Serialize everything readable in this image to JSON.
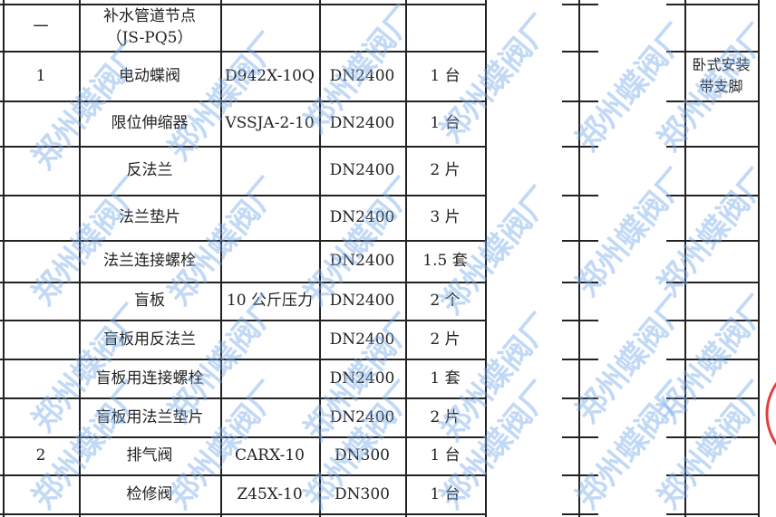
{
  "watermark": "郑州蝶阀厂",
  "seal_color": "#e04040",
  "rows": [
    {
      "no": "一",
      "name": "补水管道节点\n（JS-PQ5）",
      "model": "",
      "spec": "",
      "qty": "",
      "remark": ""
    },
    {
      "no": "1",
      "name": "电动蝶阀",
      "model": "D942X-10Q",
      "spec": "DN2400",
      "qty": "1 台",
      "remark": "卧式安装\n带支脚"
    },
    {
      "no": "",
      "name": "限位伸缩器",
      "model": "VSSJA-2-10",
      "spec": "DN2400",
      "qty": "1 台",
      "remark": ""
    },
    {
      "no": "",
      "name": "反法兰",
      "model": "",
      "spec": "DN2400",
      "qty": "2 片",
      "remark": ""
    },
    {
      "no": "",
      "name": "法兰垫片",
      "model": "",
      "spec": "DN2400",
      "qty": "3 片",
      "remark": ""
    },
    {
      "no": "",
      "name": "法兰连接螺栓",
      "model": "",
      "spec": "DN2400",
      "qty": "1.5 套",
      "remark": ""
    },
    {
      "no": "",
      "name": "盲板",
      "model": "10 公斤压力",
      "spec": "DN2400",
      "qty": "2 个",
      "remark": ""
    },
    {
      "no": "",
      "name": "盲板用反法兰",
      "model": "",
      "spec": "DN2400",
      "qty": "2 片",
      "remark": ""
    },
    {
      "no": "",
      "name": "盲板用连接螺栓",
      "model": "",
      "spec": "DN2400",
      "qty": "1 套",
      "remark": ""
    },
    {
      "no": "",
      "name": "盲板用法兰垫片",
      "model": "",
      "spec": "DN2400",
      "qty": "2 片",
      "remark": ""
    },
    {
      "no": "2",
      "name": "排气阀",
      "model": "CARX-10",
      "spec": "DN300",
      "qty": "1 台",
      "remark": ""
    },
    {
      "no": "",
      "name": "检修阀",
      "model": "Z45X-10",
      "spec": "DN300",
      "qty": "1 台",
      "remark": ""
    }
  ]
}
